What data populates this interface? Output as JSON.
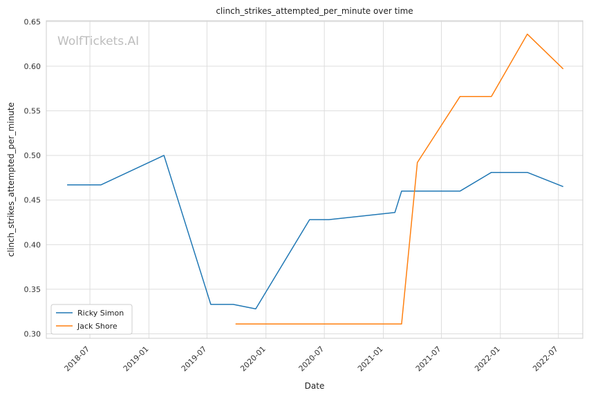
{
  "chart_data": {
    "type": "line",
    "title": "clinch_strikes_attempted_per_minute over time",
    "xlabel": "Date",
    "ylabel": "clinch_strikes_attempted_per_minute",
    "watermark": "WolfTickets.AI",
    "grid": true,
    "legend_position": "bottom-left",
    "xlim": [
      "2018-02-15",
      "2022-09-15"
    ],
    "ylim": [
      0.295,
      0.651
    ],
    "x_ticks": [
      "2018-07",
      "2019-01",
      "2019-07",
      "2020-01",
      "2020-07",
      "2021-01",
      "2021-07",
      "2022-01",
      "2022-07"
    ],
    "y_ticks": [
      "0.30",
      "0.35",
      "0.40",
      "0.45",
      "0.50",
      "0.55",
      "0.60",
      "0.65"
    ],
    "series": [
      {
        "name": "Ricky Simon",
        "color": "#1f77b4",
        "points": [
          {
            "x": "2018-04-21",
            "y": 0.467
          },
          {
            "x": "2018-08-04",
            "y": 0.467
          },
          {
            "x": "2019-02-17",
            "y": 0.5
          },
          {
            "x": "2019-07-13",
            "y": 0.333
          },
          {
            "x": "2019-09-21",
            "y": 0.333
          },
          {
            "x": "2019-11-30",
            "y": 0.328
          },
          {
            "x": "2020-05-16",
            "y": 0.428
          },
          {
            "x": "2020-07-15",
            "y": 0.428
          },
          {
            "x": "2021-02-06",
            "y": 0.436
          },
          {
            "x": "2021-02-27",
            "y": 0.46
          },
          {
            "x": "2021-08-28",
            "y": 0.46
          },
          {
            "x": "2021-12-04",
            "y": 0.481
          },
          {
            "x": "2022-03-26",
            "y": 0.481
          },
          {
            "x": "2022-07-16",
            "y": 0.465
          }
        ]
      },
      {
        "name": "Jack Shore",
        "color": "#ff7f0e",
        "points": [
          {
            "x": "2019-09-28",
            "y": 0.311
          },
          {
            "x": "2021-02-27",
            "y": 0.311
          },
          {
            "x": "2021-04-17",
            "y": 0.492
          },
          {
            "x": "2021-08-28",
            "y": 0.566
          },
          {
            "x": "2021-12-04",
            "y": 0.566
          },
          {
            "x": "2022-03-26",
            "y": 0.636
          },
          {
            "x": "2022-07-16",
            "y": 0.597
          }
        ]
      }
    ]
  }
}
